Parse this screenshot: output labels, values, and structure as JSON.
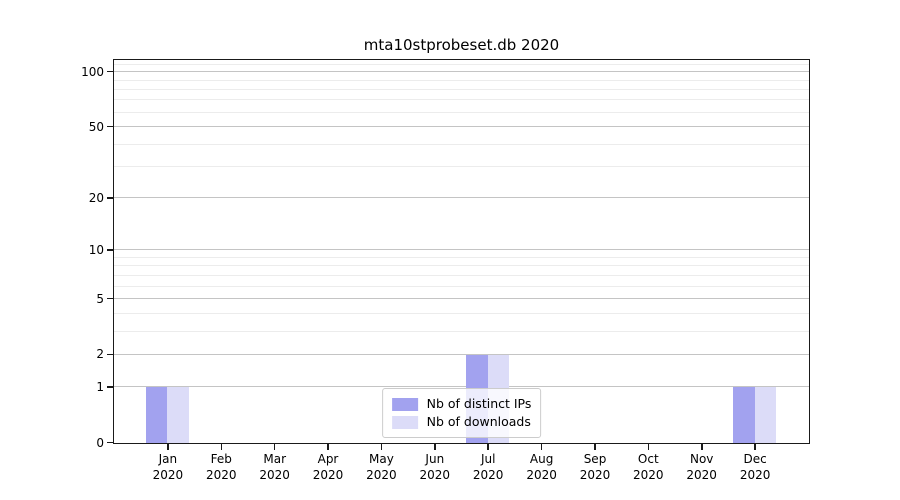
{
  "figure": {
    "title": "mta10stprobeset.db 2020"
  },
  "chart_data": {
    "type": "bar",
    "title": "mta10stprobeset.db 2020",
    "x_axis": {
      "months": [
        "Jan",
        "Feb",
        "Mar",
        "Apr",
        "May",
        "Jun",
        "Jul",
        "Aug",
        "Sep",
        "Oct",
        "Nov",
        "Dec"
      ],
      "year_label": "2020"
    },
    "series": [
      {
        "name": "Nb of distinct IPs",
        "color": "#a2a2ef",
        "values": [
          1,
          0,
          0,
          0,
          0,
          0,
          2,
          0,
          0,
          0,
          0,
          1
        ]
      },
      {
        "name": "Nb of downloads",
        "color": "#dcdcf8",
        "values": [
          1,
          0,
          0,
          0,
          0,
          0,
          2,
          0,
          0,
          0,
          0,
          1
        ]
      }
    ],
    "y_axis": {
      "scale": "log1p",
      "ylim": [
        0,
        115
      ],
      "major_ticks": [
        0,
        1,
        2,
        5,
        10,
        20,
        50,
        100
      ],
      "minor_ticks": [
        3,
        4,
        6,
        7,
        8,
        9,
        30,
        40,
        60,
        70,
        80,
        90,
        110
      ],
      "grid": "horizontal"
    },
    "legend": {
      "position": "lower-center",
      "entries": [
        "Nb of distinct IPs",
        "Nb of downloads"
      ]
    },
    "colors": {
      "bar_distinct_ips": "#a2a2ef",
      "bar_downloads": "#dcdcf8",
      "major_grid": "#c4c4c4",
      "minor_grid": "#ececec",
      "spine": "#1a1a1a",
      "text": "#000000",
      "background": "#ffffff",
      "legend_border": "#cccccc"
    }
  }
}
